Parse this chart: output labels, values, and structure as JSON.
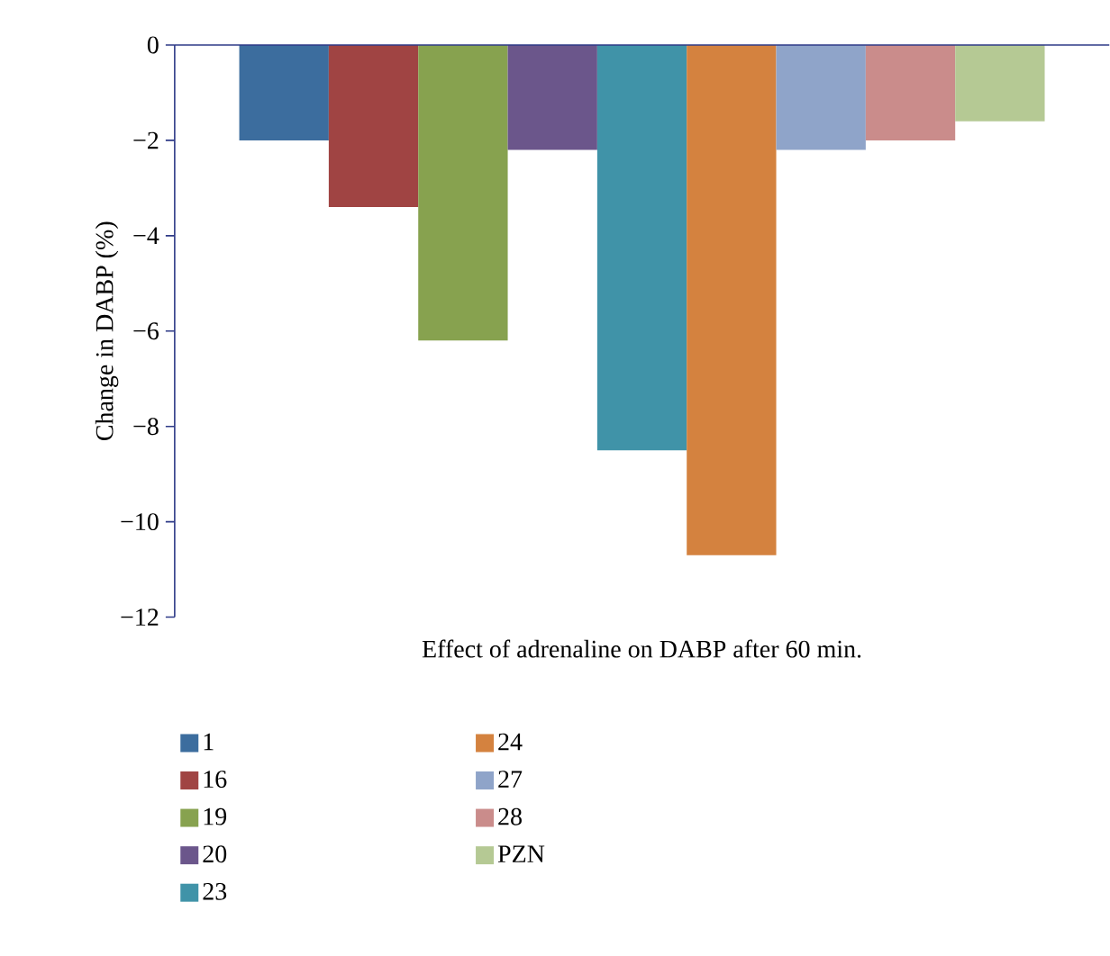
{
  "chart_data": {
    "type": "bar",
    "ylabel": "Change in DABP (%)",
    "categories": [
      "Effect of adrenaline on DABP after 60 min."
    ],
    "ylim": [
      -12,
      0
    ],
    "yticks": [
      {
        "value": -12,
        "label": "−12"
      },
      {
        "value": -10,
        "label": "−10"
      },
      {
        "value": -8,
        "label": "−8"
      },
      {
        "value": -6,
        "label": "−6"
      },
      {
        "value": -4,
        "label": "−4"
      },
      {
        "value": -2,
        "label": "−2"
      },
      0
    ],
    "legend": "bottom",
    "grid": false,
    "series": [
      {
        "name": "1",
        "color": "#3c6d9e",
        "values": [
          -2.0
        ]
      },
      {
        "name": "16",
        "color": "#a04443",
        "values": [
          -3.4
        ]
      },
      {
        "name": "19",
        "color": "#87a24f",
        "values": [
          -6.2
        ]
      },
      {
        "name": "20",
        "color": "#6b568b",
        "values": [
          -2.2
        ]
      },
      {
        "name": "23",
        "color": "#4093a8",
        "values": [
          -8.5
        ]
      },
      {
        "name": "24",
        "color": "#d4823f",
        "values": [
          -10.7
        ]
      },
      {
        "name": "27",
        "color": "#8fa4c9",
        "values": [
          -2.2
        ]
      },
      {
        "name": "28",
        "color": "#ca8c8b",
        "values": [
          -2.0
        ]
      },
      {
        "name": "PZN",
        "color": "#b5c994",
        "values": [
          -1.6
        ]
      }
    ]
  }
}
